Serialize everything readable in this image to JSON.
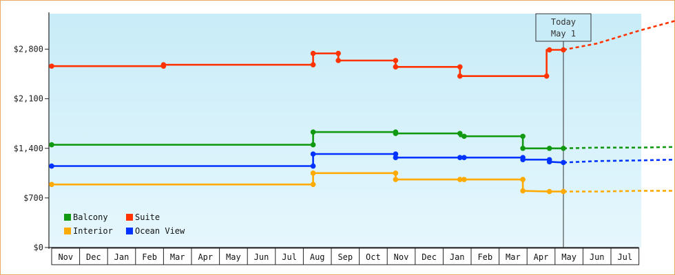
{
  "chart_data": {
    "type": "line",
    "title": "",
    "xlabel": "",
    "ylabel": "",
    "ylim": [
      0,
      3300
    ],
    "yticks": [
      {
        "value": 0,
        "label": "$0"
      },
      {
        "value": 700,
        "label": "$700"
      },
      {
        "value": 1400,
        "label": "$1,400"
      },
      {
        "value": 2100,
        "label": "$2,100"
      },
      {
        "value": 2800,
        "label": "$2,800"
      }
    ],
    "months": [
      "Nov",
      "Dec",
      "Jan",
      "Feb",
      "Mar",
      "Apr",
      "May",
      "Jun",
      "Jul",
      "Aug",
      "Sep",
      "Oct",
      "Nov",
      "Dec",
      "Jan",
      "Feb",
      "Mar",
      "Apr",
      "May",
      "Jun",
      "Jul"
    ],
    "today": {
      "label_line1": "Today",
      "label_line2": "May 1",
      "x": 18.3
    },
    "background_gradient": [
      "#c8ecf8",
      "#e6f7fd"
    ],
    "legend": {
      "position": "bottom-left"
    },
    "series": [
      {
        "name": "Balcony",
        "color": "#119911",
        "points": [
          [
            0,
            1450
          ],
          [
            9.35,
            1450
          ],
          [
            9.35,
            1630
          ],
          [
            12.3,
            1630
          ],
          [
            12.3,
            1610
          ],
          [
            14.6,
            1610
          ],
          [
            14.6,
            1570
          ],
          [
            16.85,
            1570
          ],
          [
            16.85,
            1400
          ],
          [
            17.8,
            1400
          ],
          [
            18.3,
            1400
          ]
        ],
        "markers": [
          [
            0,
            1450
          ],
          [
            9.35,
            1450
          ],
          [
            9.35,
            1630
          ],
          [
            12.3,
            1630
          ],
          [
            12.3,
            1610
          ],
          [
            14.6,
            1610
          ],
          [
            14.75,
            1570
          ],
          [
            16.85,
            1570
          ],
          [
            16.85,
            1400
          ],
          [
            17.8,
            1400
          ],
          [
            18.3,
            1400
          ]
        ],
        "forecast": [
          [
            18.3,
            1400
          ],
          [
            19.5,
            1410
          ],
          [
            21,
            1410
          ],
          [
            22.3,
            1420
          ]
        ]
      },
      {
        "name": "Suite",
        "color": "#ff3300",
        "points": [
          [
            0,
            2560
          ],
          [
            4,
            2560
          ],
          [
            4,
            2580
          ],
          [
            9.35,
            2580
          ],
          [
            9.35,
            2740
          ],
          [
            10.25,
            2740
          ],
          [
            10.25,
            2640
          ],
          [
            12.3,
            2640
          ],
          [
            12.3,
            2550
          ],
          [
            14.6,
            2550
          ],
          [
            14.6,
            2420
          ],
          [
            17.7,
            2420
          ],
          [
            17.7,
            2790
          ],
          [
            18.3,
            2790
          ]
        ],
        "markers": [
          [
            0,
            2560
          ],
          [
            4,
            2560
          ],
          [
            4,
            2580
          ],
          [
            9.35,
            2580
          ],
          [
            9.35,
            2740
          ],
          [
            10.25,
            2740
          ],
          [
            10.25,
            2640
          ],
          [
            12.3,
            2640
          ],
          [
            12.3,
            2550
          ],
          [
            14.6,
            2550
          ],
          [
            14.6,
            2420
          ],
          [
            17.7,
            2420
          ],
          [
            17.8,
            2790
          ],
          [
            18.3,
            2790
          ]
        ],
        "forecast": [
          [
            18.3,
            2790
          ],
          [
            19.5,
            2880
          ],
          [
            21,
            3060
          ],
          [
            22.3,
            3200
          ]
        ]
      },
      {
        "name": "Interior",
        "color": "#ffaa00",
        "points": [
          [
            0,
            890
          ],
          [
            9.35,
            890
          ],
          [
            9.35,
            1050
          ],
          [
            12.3,
            1050
          ],
          [
            12.3,
            960
          ],
          [
            14.6,
            960
          ],
          [
            14.75,
            960
          ],
          [
            16.85,
            960
          ],
          [
            16.85,
            800
          ],
          [
            17.8,
            790
          ],
          [
            18.3,
            790
          ]
        ],
        "markers": [
          [
            0,
            890
          ],
          [
            9.35,
            890
          ],
          [
            9.35,
            1050
          ],
          [
            12.3,
            1050
          ],
          [
            12.3,
            960
          ],
          [
            14.6,
            960
          ],
          [
            14.75,
            960
          ],
          [
            16.85,
            960
          ],
          [
            16.85,
            800
          ],
          [
            17.8,
            790
          ],
          [
            18.3,
            790
          ]
        ],
        "forecast": [
          [
            18.3,
            790
          ],
          [
            19.5,
            790
          ],
          [
            21,
            800
          ],
          [
            22.3,
            800
          ]
        ]
      },
      {
        "name": "Ocean View",
        "color": "#0033ff",
        "points": [
          [
            0,
            1150
          ],
          [
            9.35,
            1150
          ],
          [
            9.35,
            1320
          ],
          [
            12.3,
            1320
          ],
          [
            12.3,
            1270
          ],
          [
            14.6,
            1270
          ],
          [
            14.75,
            1270
          ],
          [
            16.85,
            1270
          ],
          [
            16.85,
            1240
          ],
          [
            17.8,
            1240
          ],
          [
            17.8,
            1210
          ],
          [
            18.3,
            1200
          ]
        ],
        "markers": [
          [
            0,
            1150
          ],
          [
            9.35,
            1150
          ],
          [
            9.35,
            1320
          ],
          [
            12.3,
            1320
          ],
          [
            12.3,
            1270
          ],
          [
            14.6,
            1270
          ],
          [
            14.75,
            1270
          ],
          [
            16.85,
            1270
          ],
          [
            16.85,
            1240
          ],
          [
            17.8,
            1240
          ],
          [
            17.8,
            1210
          ],
          [
            18.3,
            1200
          ]
        ],
        "forecast": [
          [
            18.3,
            1200
          ],
          [
            19.5,
            1220
          ],
          [
            21,
            1230
          ],
          [
            22.3,
            1240
          ]
        ]
      }
    ]
  }
}
